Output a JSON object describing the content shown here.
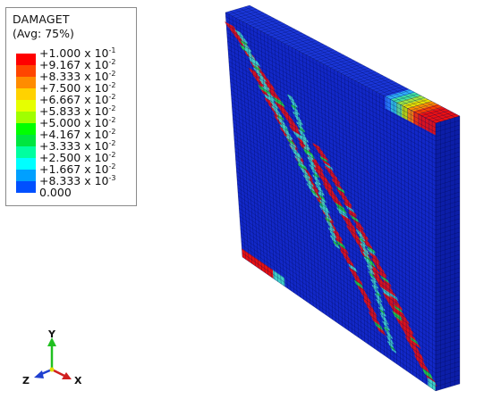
{
  "legend": {
    "title": "DAMAGET",
    "subtitle": "(Avg: 75%)",
    "entries": [
      {
        "sign": "+",
        "mantissa": "1.000",
        "exponent": "-1",
        "color": "#ff0000"
      },
      {
        "sign": "+",
        "mantissa": "9.167",
        "exponent": "-2",
        "color": "#ff4600"
      },
      {
        "sign": "+",
        "mantissa": "8.333",
        "exponent": "-2",
        "color": "#ff8c00"
      },
      {
        "sign": "+",
        "mantissa": "7.500",
        "exponent": "-2",
        "color": "#ffd200"
      },
      {
        "sign": "+",
        "mantissa": "6.667",
        "exponent": "-2",
        "color": "#e6ff00"
      },
      {
        "sign": "+",
        "mantissa": "5.833",
        "exponent": "-2",
        "color": "#a0ff00"
      },
      {
        "sign": "+",
        "mantissa": "5.000",
        "exponent": "-2",
        "color": "#00ff00"
      },
      {
        "sign": "+",
        "mantissa": "4.167",
        "exponent": "-2",
        "color": "#00e640"
      },
      {
        "sign": "+",
        "mantissa": "3.333",
        "exponent": "-2",
        "color": "#00ffa0"
      },
      {
        "sign": "+",
        "mantissa": "2.500",
        "exponent": "-2",
        "color": "#00ffff"
      },
      {
        "sign": "+",
        "mantissa": "1.667",
        "exponent": "-2",
        "color": "#00a0ff"
      },
      {
        "sign": "+",
        "mantissa": "8.333",
        "exponent": "-3",
        "color": "#0050ff"
      },
      {
        "sign": "",
        "mantissa": "0.000",
        "exponent": "",
        "color": "#0000ff"
      }
    ]
  },
  "triad": {
    "y_label": "Y",
    "z_label": "Z",
    "x_label": "X"
  },
  "colors": {
    "front_face": "#1228c8",
    "top_face": "#1a36d8",
    "side_face": "#0c1ea8",
    "mesh_line": "#000a50",
    "crack_red": "#e81010",
    "crack_green": "#20d040",
    "crack_cyan": "#40d0c8",
    "corner_orange": "#ff8800",
    "corner_yellow": "#e8e000"
  }
}
